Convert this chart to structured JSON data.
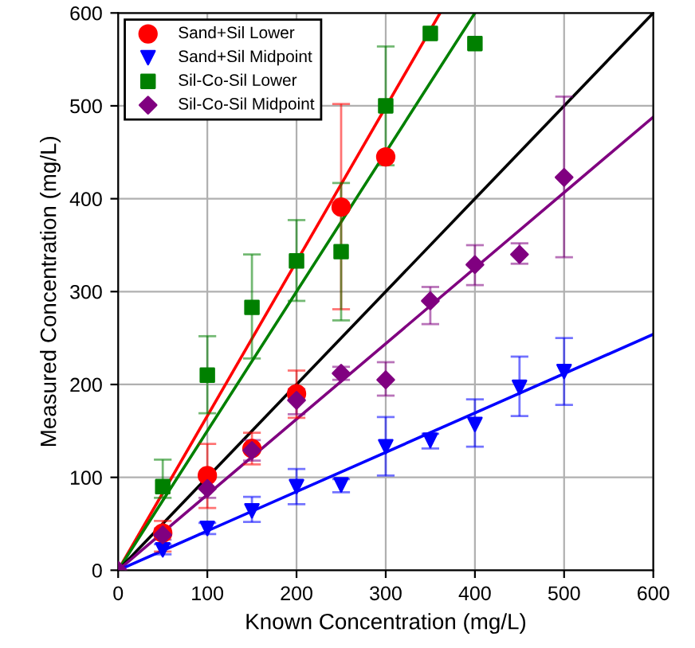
{
  "chart_data": {
    "type": "scatter",
    "xlabel": "Known Concentration (mg/L)",
    "ylabel": "Measured Concentration (mg/L)",
    "xlim": [
      0,
      600
    ],
    "ylim": [
      0,
      600
    ],
    "xticks": [
      0,
      100,
      200,
      300,
      400,
      500,
      600
    ],
    "yticks": [
      0,
      100,
      200,
      300,
      400,
      500,
      600
    ],
    "grid": true,
    "legend": "top left",
    "series": [
      {
        "name": "Sand+Sil Lower",
        "color": "#ff0000",
        "marker": "circle",
        "x": [
          50,
          100,
          150,
          200,
          250,
          300
        ],
        "values": [
          40,
          102,
          131,
          190,
          391,
          445
        ],
        "errors": [
          [
            20,
            53
          ],
          [
            67,
            136
          ],
          [
            114,
            148
          ],
          [
            164,
            215
          ],
          [
            281,
            502
          ],
          null
        ]
      },
      {
        "name": "Sand+Sil Midpoint",
        "color": "#0000ff",
        "marker": "triangle",
        "x": [
          50,
          100,
          150,
          200,
          250,
          300,
          350,
          400,
          450,
          500
        ],
        "values": [
          22,
          45,
          64,
          90,
          92,
          133,
          140,
          157,
          197,
          214
        ],
        "errors": [
          [
            17,
            28
          ],
          [
            39,
            51
          ],
          [
            52,
            79
          ],
          [
            71,
            109
          ],
          [
            84,
            98
          ],
          [
            102,
            165
          ],
          [
            131,
            147
          ],
          [
            133,
            184
          ],
          [
            166,
            230
          ],
          [
            178,
            250
          ]
        ]
      },
      {
        "name": "Sil-Co-Sil Lower",
        "color": "#008000",
        "marker": "square",
        "x": [
          50,
          100,
          150,
          200,
          250,
          300,
          350,
          400
        ],
        "values": [
          90,
          210,
          283,
          333,
          343,
          500,
          578,
          567
        ],
        "errors": [
          [
            78,
            119
          ],
          [
            169,
            252
          ],
          [
            228,
            340
          ],
          [
            290,
            377
          ],
          [
            269,
            417
          ],
          [
            436,
            564
          ],
          null,
          null
        ]
      },
      {
        "name": "Sil-Co-Sil Midpoint",
        "color": "#800080",
        "marker": "diamond",
        "x": [
          0,
          50,
          100,
          150,
          200,
          250,
          300,
          350,
          400,
          450,
          500
        ],
        "values": [
          0,
          38,
          88,
          129,
          183,
          212,
          205,
          290,
          329,
          340,
          423
        ],
        "errors": [
          null,
          [
            33,
            45
          ],
          [
            78,
            98
          ],
          [
            118,
            140
          ],
          [
            168,
            195
          ],
          [
            205,
            219
          ],
          [
            188,
            224
          ],
          [
            265,
            305
          ],
          [
            307,
            350
          ],
          [
            330,
            352
          ],
          [
            337,
            510
          ]
        ]
      },
      {
        "type": "line",
        "color": "#ff0000",
        "x": [
          0,
          361
        ],
        "values": [
          0,
          600
        ]
      },
      {
        "type": "line",
        "color": "#008000",
        "x": [
          0,
          400
        ],
        "values": [
          0,
          600
        ]
      },
      {
        "type": "line",
        "color": "#000000",
        "x": [
          0,
          600
        ],
        "values": [
          0,
          600
        ]
      },
      {
        "type": "line",
        "color": "#800080",
        "x": [
          0,
          600
        ],
        "values": [
          0,
          488
        ]
      },
      {
        "type": "line",
        "color": "#0000ff",
        "x": [
          0,
          600
        ],
        "values": [
          0,
          254
        ]
      }
    ]
  }
}
